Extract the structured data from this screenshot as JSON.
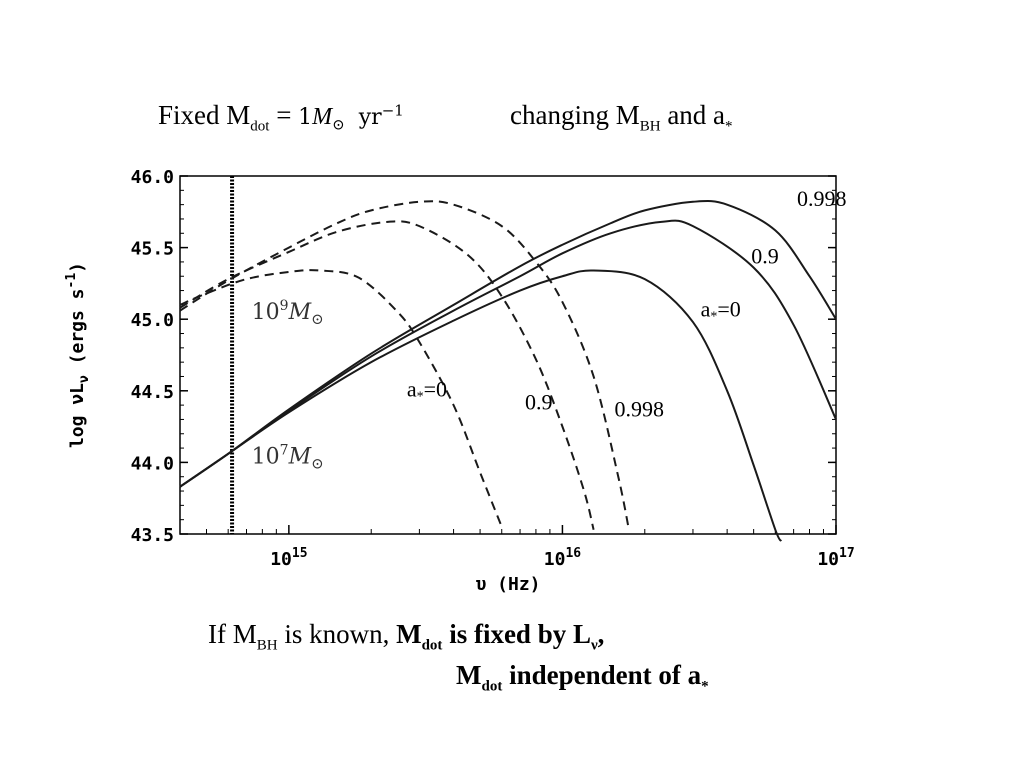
{
  "header": {
    "left_prefix": "Fixed M",
    "left_sub": "dot",
    "left_equals": " = ",
    "formula_value": "1",
    "formula_unit": "yr",
    "formula_exp": "−1",
    "right_prefix": "changing  M",
    "right_sub": "BH",
    "right_and": "  and  a",
    "right_star": "*"
  },
  "footer": {
    "line1_prefix": "If M",
    "line1_sub": "BH",
    "line1_mid": " is known,  ",
    "line1_bold_m": "M",
    "line1_bold_sub": "dot",
    "line1_bold_text": " is fixed by L",
    "line1_bold_nu": "ν",
    "line1_bold_end": ",",
    "line2_m": "M",
    "line2_sub": "dot",
    "line2_text": " independent of a",
    "line2_star": "*"
  },
  "chart_data": {
    "type": "line",
    "xlabel": "υ (Hz)",
    "ylabel": "log νL",
    "ylabel_sub": "ν",
    "ylabel_unit": "(ergs s",
    "ylabel_exp": "-1",
    "ylabel_close": ")",
    "x_scale": "log",
    "xlim": [
      400000000000000.0,
      1e+17
    ],
    "ylim": [
      43.5,
      46.0
    ],
    "x_ticks": [
      {
        "base": "10",
        "exp": "15",
        "value": 1000000000000000.0
      },
      {
        "base": "10",
        "exp": "16",
        "value": 1e+16
      },
      {
        "base": "10",
        "exp": "17",
        "value": 1e+17
      }
    ],
    "y_ticks": [
      "43.5",
      "44.0",
      "44.5",
      "45.0",
      "45.5",
      "46.0"
    ],
    "vertical_line_x": 620000000000000.0,
    "mass_labels": [
      {
        "base": "10",
        "exp": "9",
        "text": "M",
        "sym": "⊙",
        "x": 650000000000000.0,
        "y": 45.03
      },
      {
        "base": "10",
        "exp": "7",
        "text": "M",
        "sym": "⊙",
        "x": 650000000000000.0,
        "y": 44.02
      }
    ],
    "series": [
      {
        "mass": "10^7",
        "spin": "0",
        "style": "solid",
        "x": [
          400000000000000.0,
          600000000000000.0,
          1000000000000000.0,
          2000000000000000.0,
          4000000000000000.0,
          7000000000000000.0,
          1e+16,
          1.3e+16,
          2e+16,
          3e+16,
          4e+16,
          5e+16,
          6e+16,
          6.3e+16
        ],
        "y": [
          43.83,
          44.06,
          44.35,
          44.7,
          44.99,
          45.2,
          45.3,
          45.34,
          45.28,
          44.98,
          44.5,
          43.98,
          43.53,
          43.45
        ]
      },
      {
        "mass": "10^7",
        "spin": "0.9",
        "style": "solid",
        "x": [
          400000000000000.0,
          600000000000000.0,
          1000000000000000.0,
          2000000000000000.0,
          4000000000000000.0,
          7000000000000000.0,
          1e+16,
          1.5e+16,
          2.3e+16,
          3e+16,
          5e+16,
          7e+16,
          1e+17
        ],
        "y": [
          43.83,
          44.06,
          44.36,
          44.74,
          45.06,
          45.3,
          45.46,
          45.6,
          45.68,
          45.65,
          45.36,
          44.96,
          44.3
        ]
      },
      {
        "mass": "10^7",
        "spin": "0.998",
        "style": "solid",
        "x": [
          400000000000000.0,
          600000000000000.0,
          1000000000000000.0,
          2000000000000000.0,
          4000000000000000.0,
          7000000000000000.0,
          1e+16,
          1.5e+16,
          2e+16,
          3e+16,
          4e+16,
          6e+16,
          8e+16,
          1e+17
        ],
        "y": [
          43.83,
          44.06,
          44.37,
          44.76,
          45.1,
          45.37,
          45.52,
          45.67,
          45.76,
          45.82,
          45.8,
          45.62,
          45.3,
          45.0
        ]
      },
      {
        "mass": "10^9",
        "spin": "0",
        "style": "dashed",
        "x": [
          400000000000000.0,
          500000000000000.0,
          700000000000000.0,
          1000000000000000.0,
          1300000000000000.0,
          1800000000000000.0,
          2500000000000000.0,
          3000000000000000.0,
          4000000000000000.0,
          5000000000000000.0,
          6000000000000000.0
        ],
        "y": [
          45.1,
          45.18,
          45.28,
          45.33,
          45.34,
          45.29,
          45.05,
          44.84,
          44.4,
          43.93,
          43.55
        ]
      },
      {
        "mass": "10^9",
        "spin": "0.9",
        "style": "dashed",
        "x": [
          400000000000000.0,
          600000000000000.0,
          1000000000000000.0,
          1500000000000000.0,
          2300000000000000.0,
          3000000000000000.0,
          4500000000000000.0,
          6000000000000000.0,
          8000000000000000.0,
          1e+16,
          1.2e+16,
          1.3e+16
        ],
        "y": [
          45.08,
          45.28,
          45.47,
          45.61,
          45.68,
          45.65,
          45.45,
          45.16,
          44.72,
          44.25,
          43.8,
          43.53
        ]
      },
      {
        "mass": "10^9",
        "spin": "0.998",
        "style": "dashed",
        "x": [
          400000000000000.0,
          600000000000000.0,
          1000000000000000.0,
          1500000000000000.0,
          2000000000000000.0,
          3000000000000000.0,
          4000000000000000.0,
          6000000000000000.0,
          8000000000000000.0,
          1e+16,
          1.3e+16,
          1.6e+16,
          1.75e+16
        ],
        "y": [
          45.06,
          45.27,
          45.5,
          45.67,
          45.76,
          45.82,
          45.8,
          45.65,
          45.4,
          45.12,
          44.6,
          43.9,
          43.53
        ]
      }
    ],
    "annotations": [
      {
        "text": "0.998",
        "x": 7.2e+16,
        "y": 45.79
      },
      {
        "text": "0.9",
        "x": 4.9e+16,
        "y": 45.39
      },
      {
        "text": "a",
        "star": "*",
        "eq": "=0",
        "x": 3.2e+16,
        "y": 45.02
      },
      {
        "text": "a",
        "star": "*",
        "eq": "=0",
        "x": 2700000000000000.0,
        "y": 44.46
      },
      {
        "text": "0.9",
        "x": 7300000000000000.0,
        "y": 44.37
      },
      {
        "text": "0.998",
        "x": 1.55e+16,
        "y": 44.32
      }
    ]
  }
}
